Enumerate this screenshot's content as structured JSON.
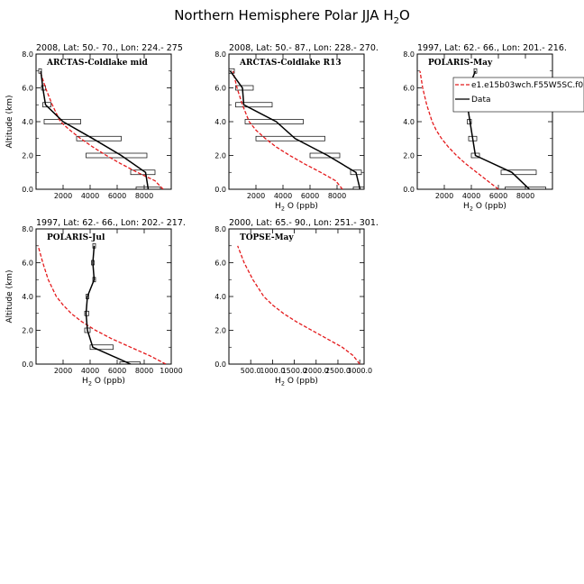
{
  "figure": {
    "title": "Northern Hemisphere Polar JJA H",
    "title_sub": "2",
    "title_tail": "O"
  },
  "chart_data": [
    {
      "type": "line",
      "header": "2008, Lat:  50.- 70., Lon: 224.- 275",
      "campaign": "ARCTAS-Coldlake mid",
      "xlabel_pre": "H",
      "xlabel_sub": "2",
      "xlabel_post": "O (ppb)",
      "ylabel": "Altitude (km)",
      "xlim": [
        0,
        10000
      ],
      "ylim": [
        0,
        8
      ],
      "xticks": [
        2000,
        4000,
        6000,
        8000
      ],
      "xtick_labels": [
        "2000",
        "4000",
        "6000",
        "8000"
      ],
      "yticks": [
        0,
        2,
        4,
        6,
        8
      ],
      "ytick_labels": [
        "0.0",
        "2.0",
        "4.0",
        "6.0",
        "8.0"
      ],
      "show_xlabel": false,
      "model": {
        "name": "",
        "color": "#e41a1c",
        "x": [
          9400,
          8800,
          7500,
          6300,
          5200,
          4200,
          3300,
          2500,
          1800,
          1200,
          700,
          300
        ],
        "y": [
          0,
          0.5,
          1,
          1.5,
          2,
          2.5,
          3,
          3.5,
          4,
          5,
          6,
          7
        ]
      },
      "data": {
        "name": "",
        "color": "#000000",
        "x": [
          8300,
          8100,
          6300,
          4200,
          2000,
          700,
          500,
          350
        ],
        "y": [
          0,
          1,
          2,
          3,
          4,
          5,
          6,
          7
        ],
        "box_x0": [
          7400,
          7000,
          3700,
          3000,
          600,
          500,
          400,
          200
        ],
        "box_x1": [
          9200,
          8800,
          8200,
          6300,
          3300,
          1100,
          700,
          400
        ]
      },
      "legend": []
    },
    {
      "type": "line",
      "header": "2008, Lat:  50.- 87., Lon: 228.- 270.",
      "campaign": "ARCTAS-Coldlake R13",
      "xlabel_pre": "H",
      "xlabel_sub": "2",
      "xlabel_post": "O (ppb)",
      "ylabel": "",
      "xlim": [
        0,
        10000
      ],
      "ylim": [
        0,
        8
      ],
      "xticks": [
        2000,
        4000,
        6000,
        8000
      ],
      "xtick_labels": [
        "2000",
        "4000",
        "6000",
        "8000"
      ],
      "yticks": [
        0,
        2,
        4,
        6,
        8
      ],
      "ytick_labels": [
        "0.0",
        "2.0",
        "4.0",
        "6.0",
        "8.0"
      ],
      "show_xlabel": true,
      "model": {
        "name": "",
        "color": "#e41a1c",
        "x": [
          8400,
          7900,
          6800,
          5600,
          4500,
          3500,
          2700,
          2000,
          1500,
          1000,
          600,
          300
        ],
        "y": [
          0,
          0.5,
          1,
          1.5,
          2,
          2.5,
          3,
          3.5,
          4,
          5,
          6,
          7
        ]
      },
      "data": {
        "name": "",
        "color": "#000000",
        "x": [
          9700,
          9400,
          7300,
          4900,
          3500,
          1100,
          1000,
          100
        ],
        "y": [
          0,
          1,
          2,
          3,
          4,
          5,
          6,
          7
        ],
        "box_x0": [
          9200,
          9000,
          6000,
          2000,
          1200,
          500,
          500,
          0
        ],
        "box_x1": [
          10000,
          9800,
          8200,
          7100,
          5500,
          3200,
          1800,
          400
        ]
      },
      "legend": []
    },
    {
      "type": "line",
      "header": "1997, Lat: 62.- 66., Lon: 201.- 216.",
      "campaign": "POLARIS-May",
      "xlabel_pre": "H",
      "xlabel_sub": "2",
      "xlabel_post": "O (ppb)",
      "ylabel": "",
      "xlim": [
        0,
        10000
      ],
      "ylim": [
        0,
        8
      ],
      "xticks": [
        2000,
        4000,
        6000,
        8000
      ],
      "xtick_labels": [
        "2000",
        "4000",
        "6000",
        "8000"
      ],
      "yticks": [
        0,
        2,
        4,
        6,
        8
      ],
      "ytick_labels": [
        "0.0",
        "2.0",
        "4.0",
        "6.0",
        "8.0"
      ],
      "show_xlabel": true,
      "model": {
        "name": "",
        "color": "#e41a1c",
        "x": [
          6000,
          5200,
          4400,
          3600,
          2900,
          2300,
          1800,
          1400,
          1100,
          700,
          400,
          200
        ],
        "y": [
          0,
          0.5,
          1,
          1.5,
          2,
          2.5,
          3,
          3.5,
          4,
          5,
          6,
          7
        ]
      },
      "data": {
        "name": "",
        "color": "#000000",
        "x": [
          8300,
          7000,
          4300,
          4100,
          3900,
          3700,
          3800,
          4300
        ],
        "y": [
          0,
          1,
          2,
          3,
          4,
          5,
          6,
          7
        ],
        "box_x0": [
          6500,
          6200,
          4000,
          3800,
          3700,
          3500,
          3600,
          4200
        ],
        "box_x1": [
          9500,
          8800,
          4600,
          4400,
          4000,
          3900,
          3900,
          4400
        ]
      },
      "legend": [
        {
          "label": "e1.e15b03wch.F55W5SC.f0",
          "color": "#e41a1c",
          "style": "dashed"
        },
        {
          "label": "Data",
          "color": "#000000",
          "style": "solid"
        }
      ]
    },
    {
      "type": "line",
      "header": "1997, Lat: 62.- 66., Lon: 202.- 217.",
      "campaign": "POLARIS-Jul",
      "xlabel_pre": "H",
      "xlabel_sub": "2",
      "xlabel_post": "O (ppb)",
      "ylabel": "Altitude (km)",
      "xlim": [
        0,
        10000
      ],
      "ylim": [
        0,
        8
      ],
      "xticks": [
        2000,
        4000,
        6000,
        8000,
        10000
      ],
      "xtick_labels": [
        "2000",
        "4000",
        "6000",
        "8000",
        "10000"
      ],
      "yticks": [
        0,
        2,
        4,
        6,
        8
      ],
      "ytick_labels": [
        "0.0",
        "2.0",
        "4.0",
        "6.0",
        "8.0"
      ],
      "show_xlabel": true,
      "model": {
        "name": "",
        "color": "#e41a1c",
        "x": [
          9600,
          8400,
          7000,
          5600,
          4400,
          3400,
          2600,
          2000,
          1500,
          900,
          500,
          150
        ],
        "y": [
          0,
          0.5,
          1,
          1.5,
          2,
          2.5,
          3,
          3.5,
          4,
          5,
          6,
          7
        ]
      },
      "data": {
        "name": "",
        "color": "#000000",
        "x": [
          7000,
          4200,
          3800,
          3700,
          3800,
          4300,
          4200,
          4300
        ],
        "y": [
          0,
          1,
          2,
          3,
          4,
          5,
          6,
          7
        ],
        "box_x0": [
          6200,
          4000,
          3600,
          3600,
          3700,
          4200,
          4100,
          4200
        ],
        "box_x1": [
          7700,
          5700,
          4000,
          3900,
          3900,
          4400,
          4300,
          4400
        ]
      },
      "legend": []
    },
    {
      "type": "line",
      "header": "2000, Lat: 65.- 90., Lon: 251.- 301.",
      "campaign": "TOPSE-May",
      "xlabel_pre": "H",
      "xlabel_sub": "2",
      "xlabel_post": "O (ppb)",
      "ylabel": "",
      "xlim": [
        0,
        3100
      ],
      "ylim": [
        0,
        8
      ],
      "xticks": [
        500,
        1000,
        1500,
        2000,
        2500,
        3000
      ],
      "xtick_labels": [
        "500.0",
        "1000.0",
        "1500.0",
        "2000.0",
        "2500.0",
        "3000.0"
      ],
      "yticks": [
        0,
        2,
        4,
        6,
        8
      ],
      "ytick_labels": [
        "0.0",
        "2.0",
        "4.0",
        "6.0",
        "8.0"
      ],
      "show_xlabel": true,
      "model": {
        "name": "",
        "color": "#e41a1c",
        "x": [
          3000,
          2850,
          2600,
          2250,
          1900,
          1550,
          1250,
          1000,
          800,
          550,
          350,
          200
        ],
        "y": [
          0,
          0.5,
          1,
          1.5,
          2,
          2.5,
          3,
          3.5,
          4,
          5,
          6,
          7
        ]
      },
      "data": {
        "name": "",
        "color": "#000000",
        "x": [],
        "y": [],
        "box_x0": [],
        "box_x1": []
      },
      "legend": []
    }
  ]
}
